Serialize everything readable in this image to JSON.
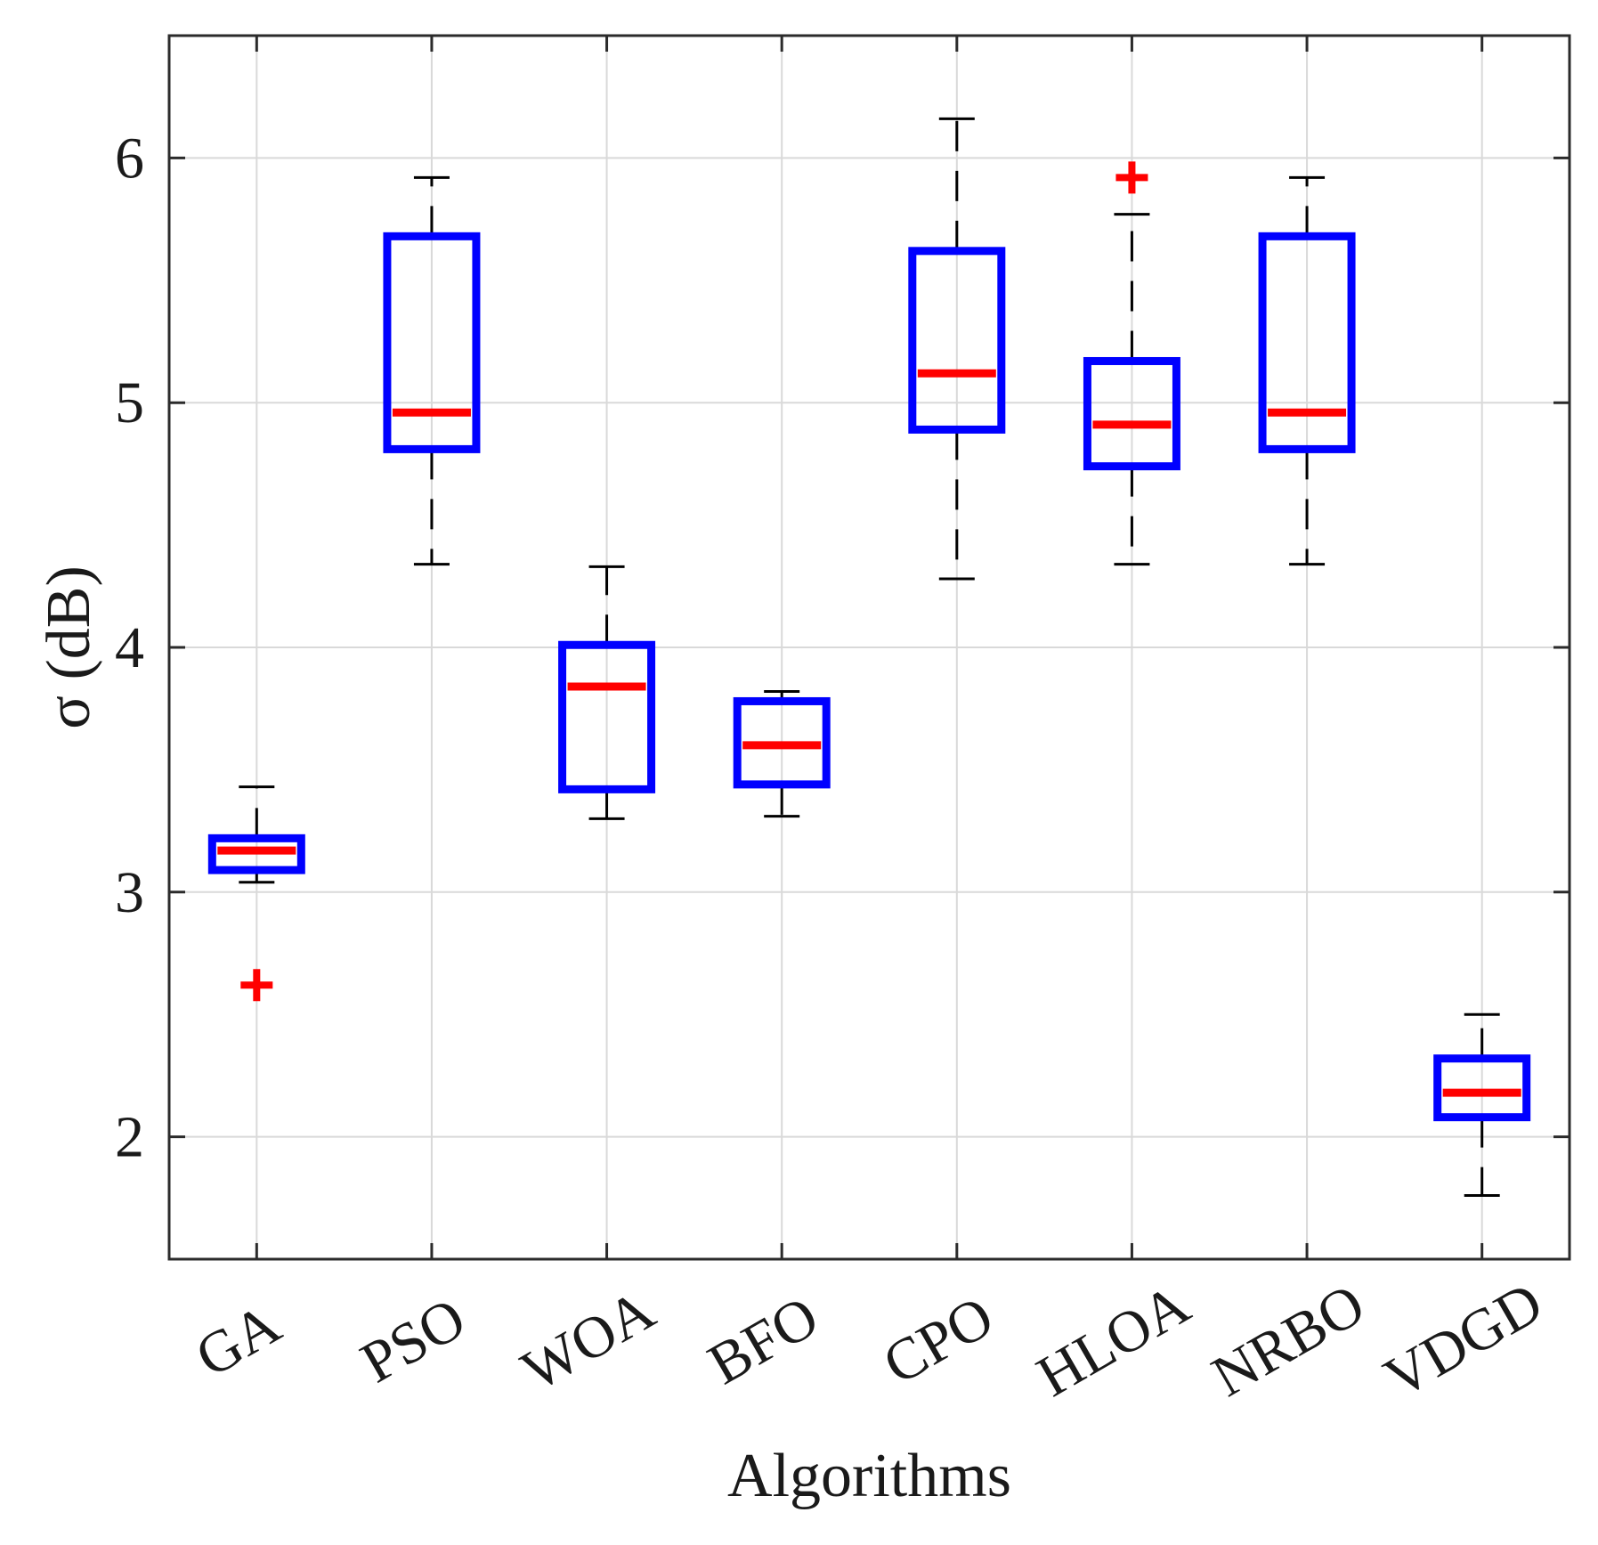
{
  "chart_data": {
    "type": "box",
    "title": "",
    "xlabel": "Algorithms",
    "ylabel": "σ (dB)",
    "ylim": [
      1.5,
      6.5
    ],
    "yticks": [
      2,
      3,
      4,
      5,
      6
    ],
    "grid": true,
    "colors": {
      "box": "#0000ff",
      "median": "#ff0000",
      "whisker": "#000000",
      "outlier": "#ff0000",
      "grid": "#d9d9d9"
    },
    "categories": [
      "GA",
      "PSO",
      "WOA",
      "BFO",
      "CPO",
      "HLOA",
      "NRBO",
      "VDGD"
    ],
    "boxes": [
      {
        "name": "GA",
        "whisker_low": 3.04,
        "q1": 3.09,
        "median": 3.17,
        "q3": 3.22,
        "whisker_high": 3.43,
        "outliers": [
          2.62
        ]
      },
      {
        "name": "PSO",
        "whisker_low": 4.34,
        "q1": 4.81,
        "median": 4.96,
        "q3": 5.68,
        "whisker_high": 5.92,
        "outliers": []
      },
      {
        "name": "WOA",
        "whisker_low": 3.3,
        "q1": 3.42,
        "median": 3.84,
        "q3": 4.01,
        "whisker_high": 4.33,
        "outliers": []
      },
      {
        "name": "BFO",
        "whisker_low": 3.31,
        "q1": 3.44,
        "median": 3.6,
        "q3": 3.78,
        "whisker_high": 3.82,
        "outliers": []
      },
      {
        "name": "CPO",
        "whisker_low": 4.28,
        "q1": 4.89,
        "median": 5.12,
        "q3": 5.62,
        "whisker_high": 6.16,
        "outliers": []
      },
      {
        "name": "HLOA",
        "whisker_low": 4.34,
        "q1": 4.74,
        "median": 4.91,
        "q3": 5.17,
        "whisker_high": 5.77,
        "outliers": [
          5.92
        ]
      },
      {
        "name": "NRBO",
        "whisker_low": 4.34,
        "q1": 4.81,
        "median": 4.96,
        "q3": 5.68,
        "whisker_high": 5.92,
        "outliers": []
      },
      {
        "name": "VDGD",
        "whisker_low": 1.76,
        "q1": 2.08,
        "median": 2.18,
        "q3": 2.32,
        "whisker_high": 2.5,
        "outliers": []
      }
    ]
  }
}
